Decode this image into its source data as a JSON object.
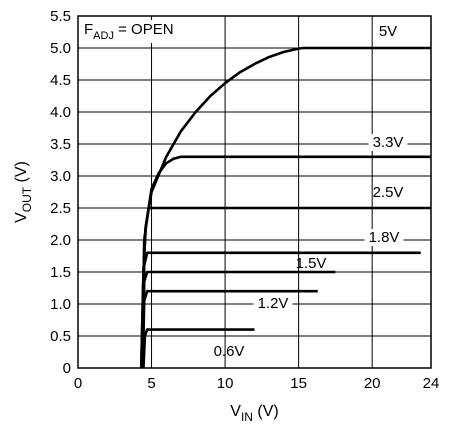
{
  "chart_data": {
    "type": "line",
    "xlabel": {
      "main": "V",
      "sub": "IN",
      "unit": " (V)"
    },
    "ylabel": {
      "main": "V",
      "sub": "OUT",
      "unit": " (V)"
    },
    "xlim": [
      0,
      24
    ],
    "ylim": [
      0,
      5.5
    ],
    "xticks": [
      0,
      5,
      10,
      15,
      20,
      24
    ],
    "yticks": [
      0,
      0.5,
      1.0,
      1.5,
      2.0,
      2.5,
      3.0,
      3.5,
      4.0,
      4.5,
      5.0,
      5.5
    ],
    "ytick_labels": [
      "0",
      "0.5",
      "1.0",
      "1.5",
      "2.0",
      "2.5",
      "3.0",
      "3.5",
      "4.0",
      "4.5",
      "5.0",
      "5.5"
    ],
    "grid": true,
    "annotation": {
      "main": "F",
      "sub": "ADJ",
      "rest": " = OPEN"
    },
    "series": [
      {
        "name": "5V",
        "label": "5V",
        "points": [
          [
            4.3,
            0
          ],
          [
            4.45,
            1.5
          ],
          [
            4.6,
            2.2
          ],
          [
            5.0,
            2.75
          ],
          [
            6.0,
            3.3
          ],
          [
            7.0,
            3.7
          ],
          [
            8.0,
            4.0
          ],
          [
            9.0,
            4.25
          ],
          [
            10.0,
            4.45
          ],
          [
            11.0,
            4.62
          ],
          [
            12.0,
            4.75
          ],
          [
            13.0,
            4.86
          ],
          [
            14.0,
            4.94
          ],
          [
            15.0,
            4.99
          ],
          [
            15.3,
            5.0
          ],
          [
            24.0,
            5.0
          ]
        ]
      },
      {
        "name": "3.3V",
        "label": "3.3V",
        "points": [
          [
            4.3,
            0
          ],
          [
            4.45,
            1.5
          ],
          [
            4.6,
            2.2
          ],
          [
            5.0,
            2.8
          ],
          [
            5.5,
            3.05
          ],
          [
            6.0,
            3.2
          ],
          [
            6.5,
            3.27
          ],
          [
            7.0,
            3.3
          ],
          [
            24.0,
            3.3
          ]
        ]
      },
      {
        "name": "2.5V",
        "label": "2.5V",
        "points": [
          [
            4.35,
            0
          ],
          [
            4.5,
            2.0
          ],
          [
            4.8,
            2.5
          ],
          [
            24.0,
            2.5
          ]
        ]
      },
      {
        "name": "1.8V",
        "label": "1.8V",
        "points": [
          [
            4.4,
            0
          ],
          [
            4.5,
            1.6
          ],
          [
            4.7,
            1.8
          ],
          [
            23.3,
            1.8
          ]
        ]
      },
      {
        "name": "1.5V",
        "label": "1.5V",
        "points": [
          [
            4.4,
            0
          ],
          [
            4.5,
            1.35
          ],
          [
            4.7,
            1.5
          ],
          [
            17.5,
            1.5
          ]
        ]
      },
      {
        "name": "1.2V",
        "label": "1.2V",
        "points": [
          [
            4.4,
            0
          ],
          [
            4.5,
            1.05
          ],
          [
            4.7,
            1.2
          ],
          [
            16.3,
            1.2
          ]
        ]
      },
      {
        "name": "0.6V",
        "label": "0.6V",
        "points": [
          [
            4.45,
            0
          ],
          [
            4.55,
            0.5
          ],
          [
            4.7,
            0.6
          ],
          [
            12.0,
            0.6
          ]
        ]
      }
    ]
  }
}
